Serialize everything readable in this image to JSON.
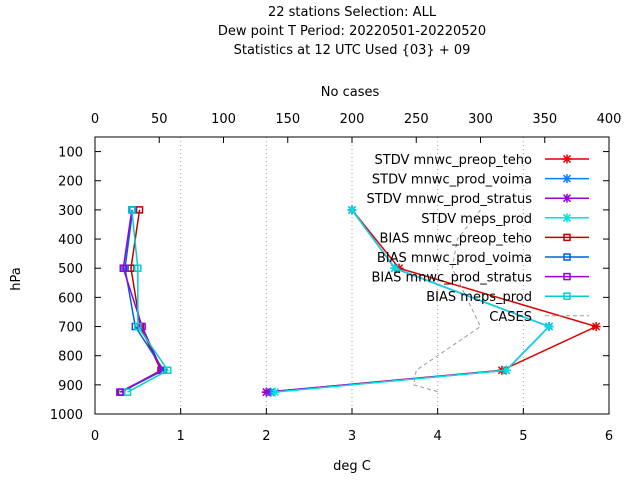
{
  "chart_data": {
    "type": "line",
    "title_lines": [
      "22 stations Selection: ALL",
      "Dew point T  Period: 20220501-20220520",
      "Statistics at 12 UTC  Used {03} + 09"
    ],
    "x2label": "No cases",
    "xlabel": "deg C",
    "ylabel": "hPa",
    "xlim": [
      0,
      6
    ],
    "x2lim": [
      0,
      400
    ],
    "ylim": [
      1000,
      50
    ],
    "x_ticks": [
      "0",
      "1",
      "2",
      "3",
      "4",
      "5",
      "6"
    ],
    "x2_ticks": [
      "0",
      "50",
      "100",
      "150",
      "200",
      "250",
      "300",
      "350",
      "400"
    ],
    "y_ticks": [
      "100",
      "200",
      "300",
      "400",
      "500",
      "600",
      "700",
      "800",
      "900",
      "1000"
    ],
    "levels": [
      300,
      500,
      700,
      850,
      925
    ],
    "series": [
      {
        "name": "STDV mnwc_preop_teho",
        "color": "#e00000",
        "marker": "cross",
        "values": [
          3.0,
          3.55,
          5.85,
          4.75,
          2.0
        ]
      },
      {
        "name": "STDV mnwc_prod_voima",
        "color": "#0080ff",
        "marker": "cross",
        "values": [
          3.0,
          3.5,
          5.3,
          4.8,
          2.05
        ]
      },
      {
        "name": "STDV mnwc_prod_stratus",
        "color": "#9900dd",
        "marker": "cross",
        "values": [
          3.0,
          3.5,
          5.3,
          4.8,
          2.0
        ]
      },
      {
        "name": "STDV meps_prod",
        "color": "#00e0e0",
        "marker": "cross",
        "values": [
          3.0,
          3.5,
          5.3,
          4.8,
          2.1
        ]
      },
      {
        "name": "BIAS mnwc_preop_teho",
        "color": "#c00000",
        "marker": "square",
        "values": [
          0.52,
          0.42,
          0.53,
          0.77,
          0.31
        ]
      },
      {
        "name": "BIAS mnwc_prod_voima",
        "color": "#0060e0",
        "marker": "square",
        "values": [
          0.44,
          0.35,
          0.47,
          0.8,
          0.3
        ]
      },
      {
        "name": "BIAS mnwc_prod_stratus",
        "color": "#9900dd",
        "marker": "square",
        "values": [
          0.43,
          0.33,
          0.55,
          0.78,
          0.29
        ]
      },
      {
        "name": "BIAS meps_prod",
        "color": "#00d0d0",
        "marker": "square",
        "values": [
          0.43,
          0.5,
          0.5,
          0.85,
          0.38
        ]
      },
      {
        "name": "CASES",
        "color": "#999999",
        "dashed": true,
        "axis": "x2",
        "x": [
          300,
          282,
          278,
          300,
          250,
          248,
          268
        ],
        "y": [
          300,
          400,
          500,
          700,
          850,
          900,
          925
        ]
      }
    ]
  }
}
